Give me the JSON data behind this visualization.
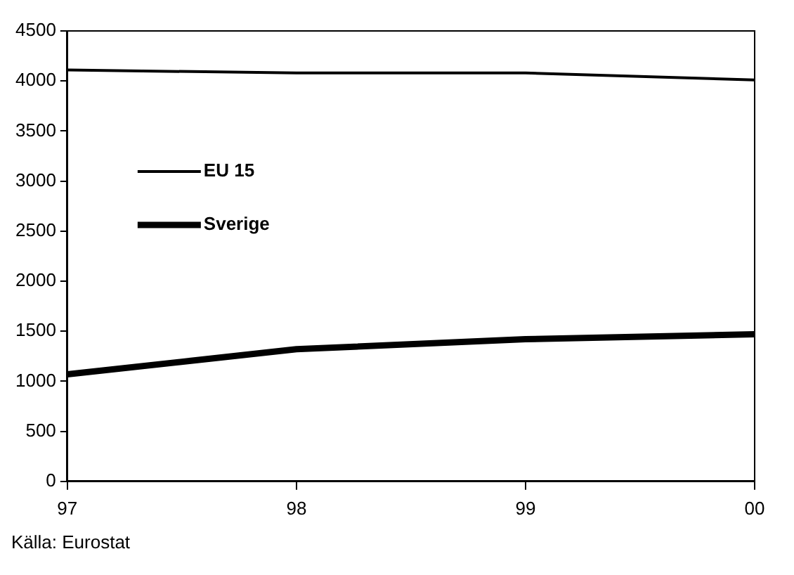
{
  "chart_data": {
    "type": "line",
    "categories": [
      "97",
      "98",
      "99",
      "00"
    ],
    "series": [
      {
        "name": "EU 15",
        "color": "#000000",
        "values": [
          4110,
          4080,
          4080,
          4010
        ]
      },
      {
        "name": "Sverige",
        "color": "#000000",
        "values": [
          1070,
          1320,
          1420,
          1470
        ]
      }
    ],
    "ylim": [
      0,
      4500
    ],
    "yticks": [
      0,
      500,
      1000,
      1500,
      2000,
      2500,
      3000,
      3500,
      4000,
      4500
    ],
    "grid": false,
    "legend": "left",
    "marker": "none",
    "line_style": "solid",
    "annotations": [
      "Källa: Eurostat"
    ]
  }
}
